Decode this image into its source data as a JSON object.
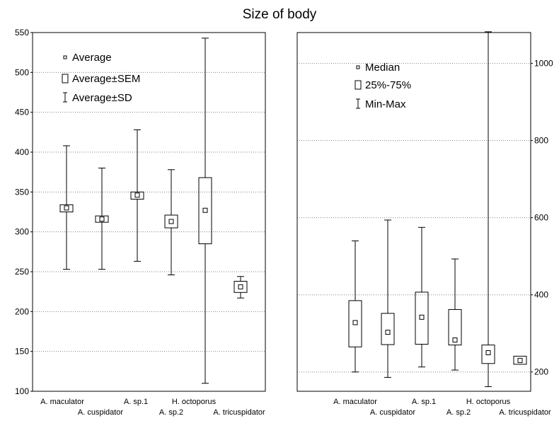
{
  "title": "Size of body",
  "chart_data": [
    {
      "type": "box",
      "ylim": [
        100,
        550
      ],
      "yticks": [
        100,
        150,
        200,
        250,
        300,
        350,
        400,
        450,
        500,
        550
      ],
      "grid": true,
      "legend_position": "top-left",
      "legend": [
        "Average",
        "Average±SEM",
        "Average±SD"
      ],
      "categories": [
        "A. maculator",
        "A. cuspidator",
        "A. sp.1",
        "A. sp.2",
        "H. octoporus",
        "A. tricuspidator"
      ],
      "series": [
        {
          "center": [
            330,
            316,
            346,
            313,
            327,
            231
          ],
          "box_low": [
            325,
            312,
            341,
            305,
            285,
            224
          ],
          "box_high": [
            334,
            320,
            350,
            321,
            368,
            238
          ],
          "whisker_low": [
            253,
            253,
            263,
            246,
            110,
            217
          ],
          "whisker_high": [
            408,
            380,
            428,
            378,
            543,
            244
          ]
        }
      ]
    },
    {
      "type": "box",
      "ylim": [
        150,
        1080
      ],
      "yticks": [
        200,
        400,
        600,
        800,
        1000
      ],
      "grid": true,
      "legend_position": "top-left",
      "legend": [
        "Median",
        "25%-75%",
        "Min-Max"
      ],
      "categories": [
        "A. maculator",
        "A. cuspidator",
        "A. sp.1",
        "A. sp.2",
        "H. octoporus",
        "A. tricuspidator"
      ],
      "series": [
        {
          "center": [
            328,
            303,
            342,
            283,
            250,
            230
          ],
          "box_low": [
            265,
            271,
            272,
            270,
            222,
            220
          ],
          "box_high": [
            385,
            352,
            407,
            362,
            270,
            241
          ],
          "whisker_low": [
            200,
            186,
            213,
            205,
            162,
            null
          ],
          "whisker_high": [
            540,
            594,
            575,
            493,
            1082,
            null
          ]
        }
      ]
    }
  ]
}
